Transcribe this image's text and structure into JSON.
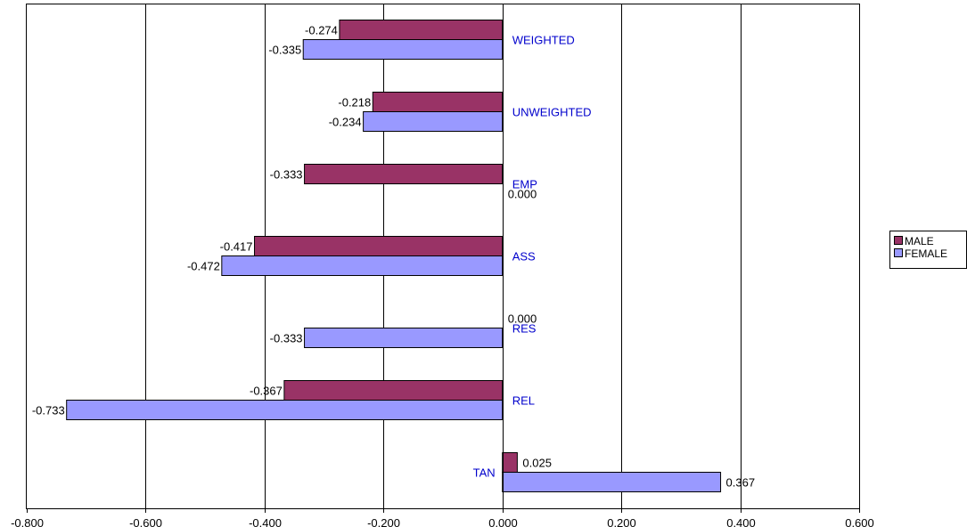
{
  "chart_data": {
    "type": "bar",
    "orientation": "horizontal",
    "categories": [
      "WEIGHTED",
      "UNWEIGHTED",
      "EMP",
      "ASS",
      "RES",
      "REL",
      "TAN"
    ],
    "series": [
      {
        "name": "MALE",
        "color": "#993366",
        "values": [
          -0.274,
          -0.218,
          -0.333,
          -0.417,
          0.0,
          -0.367,
          0.025
        ],
        "labels": [
          "-0.274",
          "-0.218",
          "-0.333",
          "-0.417",
          "0.000",
          "-0.367",
          "0.025"
        ]
      },
      {
        "name": "FEMALE",
        "color": "#9999FF",
        "values": [
          -0.335,
          -0.234,
          0.0,
          -0.472,
          -0.333,
          -0.733,
          0.367
        ],
        "labels": [
          "-0.335",
          "-0.234",
          "0.000",
          "-0.472",
          "-0.333",
          "-0.733",
          "0.367"
        ]
      }
    ],
    "xlim": [
      -0.8,
      0.6
    ],
    "xticks": [
      -0.8,
      -0.6,
      -0.4,
      -0.2,
      0.0,
      0.2,
      0.4,
      0.6
    ],
    "xtick_labels": [
      "-0.800",
      "-0.600",
      "-0.400",
      "-0.200",
      "0.000",
      "0.200",
      "0.400",
      "0.600"
    ],
    "grid": true,
    "legend": "right",
    "category_label_color": "#0000CC",
    "title": "",
    "xlabel": "",
    "ylabel": ""
  }
}
